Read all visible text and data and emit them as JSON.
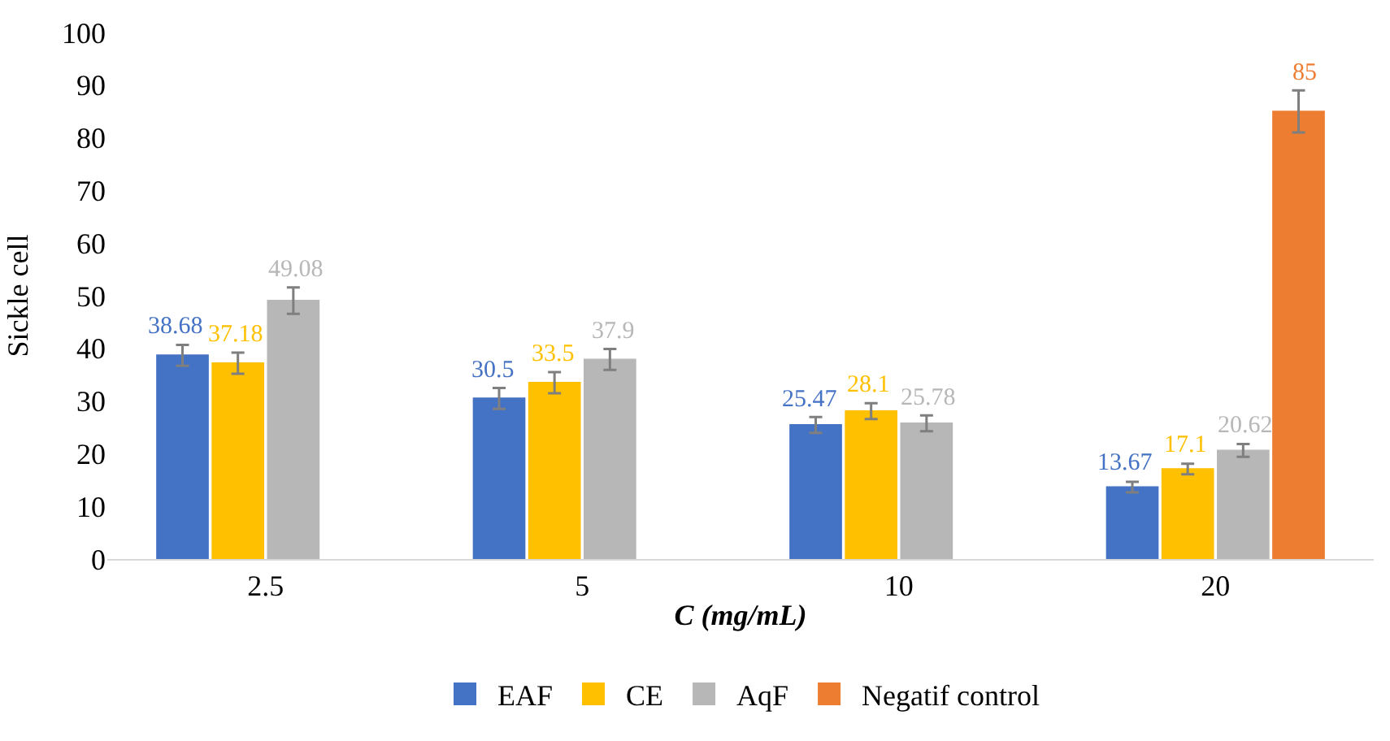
{
  "chart_data": {
    "type": "bar",
    "xlabel": "C (mg/mL)",
    "ylabel": "Sickle cell",
    "categories": [
      "2.5",
      "5",
      "10",
      "20"
    ],
    "ylim": [
      0,
      100
    ],
    "yticks": [
      0,
      10,
      20,
      30,
      40,
      50,
      60,
      70,
      80,
      90,
      100
    ],
    "grid": false,
    "legend": "bottom",
    "data_labels": true,
    "series": [
      {
        "name": "EAF",
        "color": "#4472c4",
        "values": [
          38.68,
          30.5,
          25.47,
          13.67
        ],
        "errors": [
          2,
          2,
          1.5,
          1
        ]
      },
      {
        "name": "CE",
        "color": "#ffc000",
        "values": [
          37.18,
          33.5,
          28.1,
          17.1
        ],
        "errors": [
          2,
          2,
          1.5,
          1
        ]
      },
      {
        "name": "AqF",
        "color": "#b7b7b7",
        "values": [
          49.08,
          37.9,
          25.78,
          20.62
        ],
        "errors": [
          2.5,
          2,
          1.5,
          1.2
        ]
      },
      {
        "name": "Negatif control",
        "color": "#ed7d31",
        "values": [
          null,
          null,
          null,
          85
        ],
        "errors": [
          null,
          null,
          null,
          4
        ]
      }
    ]
  }
}
